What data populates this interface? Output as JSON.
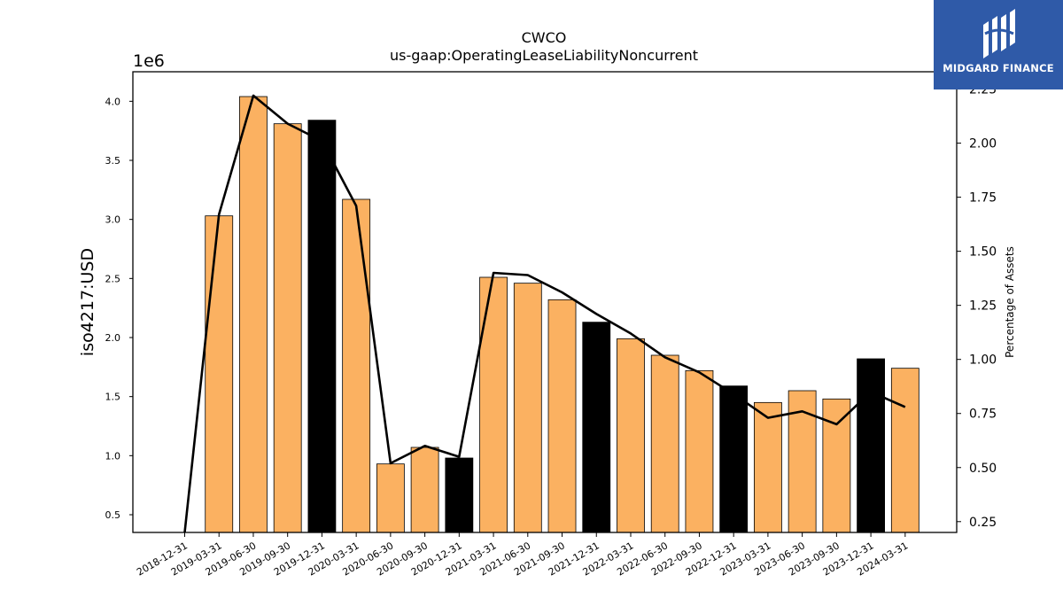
{
  "brand": {
    "name": "MIDGARD FINANCE",
    "logo_icon": "midgard-logo-icon",
    "background": "#2f5aa8"
  },
  "chart_data": {
    "type": "bar",
    "title": "CWCO",
    "subtitle": "us-gaap:OperatingLeaseLiabilityNoncurrent",
    "ylabel": "iso4217:USD",
    "y2label": "Percentage of Assets",
    "y_scale_label": "1e6",
    "ylim": [
      0.35,
      4.25
    ],
    "y2lim": [
      0.2,
      2.33
    ],
    "yticks": [
      "0.5",
      "1.0",
      "1.5",
      "2.0",
      "2.5",
      "3.0",
      "3.5",
      "4.0"
    ],
    "y2ticks": [
      "0.25",
      "0.50",
      "0.75",
      "1.00",
      "1.25",
      "1.50",
      "1.75",
      "2.00",
      "2.25"
    ],
    "grid": false,
    "colors": {
      "quarter_bar": "#fbb161",
      "year_end_bar": "#000000",
      "line": "#000000"
    },
    "categories": [
      "2018-12-31",
      "2019-03-31",
      "2019-06-30",
      "2019-09-30",
      "2019-12-31",
      "2020-03-31",
      "2020-06-30",
      "2020-09-30",
      "2020-12-31",
      "2021-03-31",
      "2021-06-30",
      "2021-09-30",
      "2021-12-31",
      "2022-03-31",
      "2022-06-30",
      "2022-09-30",
      "2022-12-31",
      "2023-03-31",
      "2023-06-30",
      "2023-09-30",
      "2023-12-31",
      "2024-03-31"
    ],
    "series": [
      {
        "type": "bar",
        "values": [
          null,
          3.03,
          4.04,
          3.81,
          3.84,
          3.17,
          0.93,
          1.07,
          0.98,
          2.51,
          2.46,
          2.32,
          2.13,
          1.99,
          1.85,
          1.72,
          1.59,
          1.45,
          1.55,
          1.48,
          1.82,
          1.74
        ],
        "highlight": [
          false,
          false,
          false,
          false,
          true,
          false,
          false,
          false,
          true,
          false,
          false,
          false,
          true,
          false,
          false,
          false,
          true,
          false,
          false,
          false,
          true,
          false
        ]
      },
      {
        "type": "line",
        "axis": "secondary",
        "values": [
          0.2,
          1.67,
          2.22,
          2.09,
          2.01,
          1.71,
          0.52,
          0.6,
          0.55,
          1.4,
          1.39,
          1.31,
          1.21,
          1.12,
          1.01,
          0.94,
          0.84,
          0.73,
          0.76,
          0.7,
          0.85,
          0.78
        ]
      }
    ]
  }
}
